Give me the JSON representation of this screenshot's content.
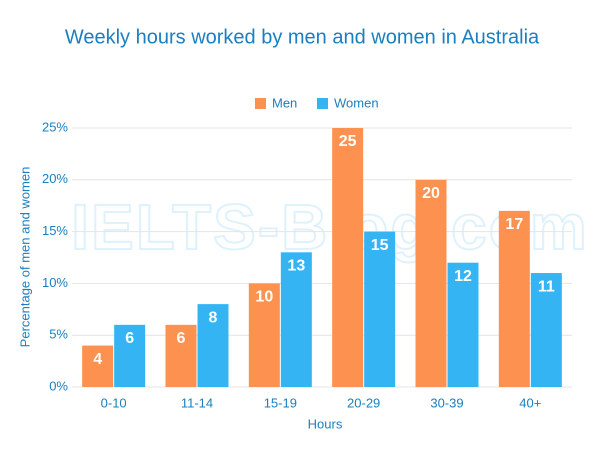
{
  "chart_data": {
    "type": "bar",
    "title": "Weekly hours worked by men and women in Australia",
    "watermark": "IELTS-Blog.com",
    "x_label": "Hours",
    "y_label": "Percentage of men and women",
    "categories": [
      "0-10",
      "11-14",
      "15-19",
      "20-29",
      "30-39",
      "40+"
    ],
    "series": [
      {
        "name": "Men",
        "color": "#fd9150",
        "values": [
          4,
          6,
          10,
          25,
          20,
          17
        ]
      },
      {
        "name": "Women",
        "color": "#35b4f4",
        "values": [
          6,
          8,
          13,
          15,
          12,
          11
        ]
      }
    ],
    "ylim": [
      0,
      25
    ],
    "yticks": [
      {
        "value": 0,
        "label": "0%"
      },
      {
        "value": 5,
        "label": "5%"
      },
      {
        "value": 10,
        "label": "10%"
      },
      {
        "value": 15,
        "label": "15%"
      },
      {
        "value": 20,
        "label": "20%"
      },
      {
        "value": 25,
        "label": "25%"
      }
    ],
    "grid": true,
    "legend": "top"
  }
}
